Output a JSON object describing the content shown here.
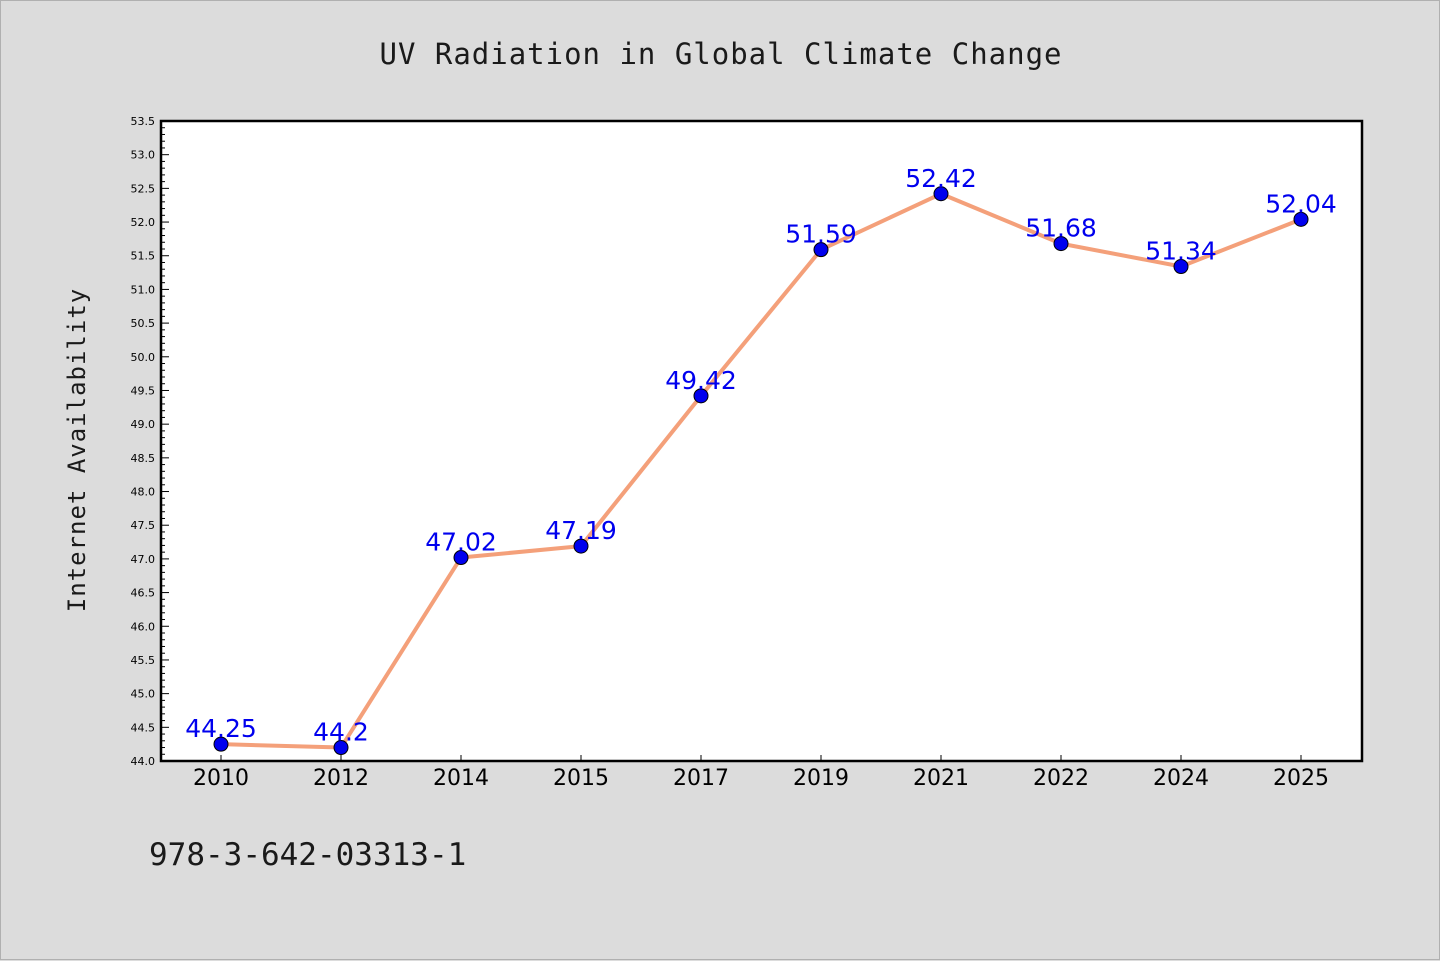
{
  "chart_data": {
    "type": "line",
    "title": "UV Radiation in Global Climate Change",
    "xlabel": "",
    "ylabel": "Internet Availability",
    "categories": [
      "2010",
      "2012",
      "2014",
      "2015",
      "2017",
      "2019",
      "2021",
      "2022",
      "2024",
      "2025"
    ],
    "series": [
      {
        "values": [
          44.25,
          44.2,
          47.02,
          47.19,
          49.42,
          51.59,
          52.42,
          51.68,
          51.34,
          52.04
        ],
        "data_labels": [
          "44.25",
          "44.2",
          "47.02",
          "47.19",
          "49.42",
          "51.59",
          "52.42",
          "51.68",
          "51.34",
          "52.04"
        ],
        "line_color": "#f4a07a",
        "marker_color": "#0000ee"
      }
    ],
    "ylim": [
      44.0,
      53.5
    ],
    "yticks": [
      "44.0",
      "44.5",
      "45.0",
      "45.5",
      "46.0",
      "46.5",
      "47.0",
      "47.5",
      "48.0",
      "48.5",
      "49.0",
      "49.5",
      "50.0",
      "50.5",
      "51.0",
      "51.5",
      "52.0",
      "52.5",
      "53.0",
      "53.5"
    ],
    "grid": false,
    "legend": "none"
  },
  "footnote": "978-3-642-03313-1"
}
